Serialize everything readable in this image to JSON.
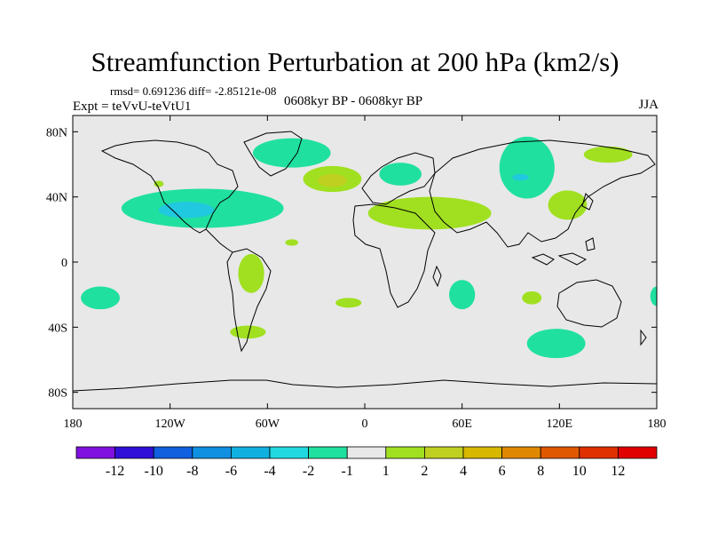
{
  "figure": {
    "title": "Streamfunction Perturbation at 200 hPa (km2/s)",
    "stats": "rmsd= 0.691236 diff= -2.85121e-08",
    "experiment": "Expt = teVvU-teVtU1",
    "period": "0608kyr BP - 0608kyr BP",
    "season": "JJA"
  },
  "map": {
    "projection": "cylindrical equidistant",
    "lon_range": [
      -180,
      180
    ],
    "lat_range": [
      -90,
      90
    ],
    "background": "#e8e8e8",
    "lon_ticks": [
      {
        "lon": -180,
        "label": "180"
      },
      {
        "lon": -120,
        "label": "120W"
      },
      {
        "lon": -60,
        "label": "60W"
      },
      {
        "lon": 0,
        "label": "0"
      },
      {
        "lon": 60,
        "label": "60E"
      },
      {
        "lon": 120,
        "label": "120E"
      },
      {
        "lon": 180,
        "label": "180"
      }
    ],
    "lat_ticks": [
      {
        "lat": 80,
        "label": "80N"
      },
      {
        "lat": 40,
        "label": "40N"
      },
      {
        "lat": 0,
        "label": "0"
      },
      {
        "lat": -40,
        "label": "40S"
      },
      {
        "lat": -80,
        "label": "80S"
      }
    ],
    "anomaly_blobs": [
      {
        "name": "arctic-east-greenland",
        "lon": -45,
        "lat": 67,
        "rlon": 24,
        "rlat": 9,
        "color": "#20e0a0"
      },
      {
        "name": "north-atlantic-ridge",
        "lon": -20,
        "lat": 51,
        "rlon": 18,
        "rlat": 8,
        "color": "#a0e020"
      },
      {
        "name": "north-atlantic-ridge-core",
        "lon": -20,
        "lat": 50,
        "rlon": 9,
        "rlat": 4,
        "color": "#c0d020"
      },
      {
        "name": "scandinavia-low",
        "lon": 22,
        "lat": 54,
        "rlon": 13,
        "rlat": 7,
        "color": "#20e0a0"
      },
      {
        "name": "siberia-low",
        "lon": 100,
        "lat": 58,
        "rlon": 17,
        "rlat": 19,
        "color": "#20e0a0"
      },
      {
        "name": "siberia-low-core",
        "lon": 96,
        "lat": 52,
        "rlon": 5,
        "rlat": 2,
        "color": "#20c8e0"
      },
      {
        "name": "north-pacific-east",
        "lon": 150,
        "lat": 66,
        "rlon": 15,
        "rlat": 5,
        "color": "#a0e020"
      },
      {
        "name": "east-asia-high",
        "lon": 125,
        "lat": 35,
        "rlon": 12,
        "rlat": 9,
        "color": "#a0e020"
      },
      {
        "name": "north-america-low",
        "lon": -100,
        "lat": 33,
        "rlon": 50,
        "rlat": 12,
        "color": "#20e0a0"
      },
      {
        "name": "north-america-low-core",
        "lon": -110,
        "lat": 32,
        "rlon": 17,
        "rlat": 5,
        "color": "#20c8e0"
      },
      {
        "name": "pacific-small-high",
        "lon": -127,
        "lat": 48,
        "rlon": 3,
        "rlat": 2,
        "color": "#a0e020"
      },
      {
        "name": "africa-asia-high",
        "lon": 40,
        "lat": 30,
        "rlon": 38,
        "rlat": 10,
        "color": "#a0e020"
      },
      {
        "name": "atlantic-small-high",
        "lon": -45,
        "lat": 12,
        "rlon": 4,
        "rlat": 2,
        "color": "#a0e020"
      },
      {
        "name": "south-america-high",
        "lon": -70,
        "lat": -7,
        "rlon": 8,
        "rlat": 12,
        "color": "#a0e020"
      },
      {
        "name": "south-atlantic-high",
        "lon": -10,
        "lat": -25,
        "rlon": 8,
        "rlat": 3,
        "color": "#a0e020"
      },
      {
        "name": "indian-ocean-low",
        "lon": 60,
        "lat": -20,
        "rlon": 8,
        "rlat": 9,
        "color": "#20e0a0"
      },
      {
        "name": "south-indian-high",
        "lon": 103,
        "lat": -22,
        "rlon": 6,
        "rlat": 4,
        "color": "#a0e020"
      },
      {
        "name": "south-pacific-low",
        "lon": -163,
        "lat": -22,
        "rlon": 12,
        "rlat": 7,
        "color": "#20e0a0"
      },
      {
        "name": "dateline-edge-low",
        "lon": 180,
        "lat": -21,
        "rlon": 4,
        "rlat": 6,
        "color": "#20e0a0"
      },
      {
        "name": "southern-ocean-low",
        "lon": 118,
        "lat": -50,
        "rlon": 18,
        "rlat": 9,
        "color": "#20e0a0"
      },
      {
        "name": "south-atlantic-ring-high",
        "lon": -72,
        "lat": -43,
        "rlon": 11,
        "rlat": 4,
        "color": "#a0e020"
      }
    ]
  },
  "colorbar": {
    "colors": [
      "#8010e0",
      "#3010d8",
      "#1060e0",
      "#1090e0",
      "#10b0e0",
      "#20d8e0",
      "#20e0a0",
      "#e8e8e8",
      "#a0e020",
      "#c0d020",
      "#d8b800",
      "#e08800",
      "#e05800",
      "#e03000",
      "#e00000"
    ],
    "labels": [
      "-12",
      "-10",
      "-8",
      "-6",
      "-4",
      "-2",
      "-1",
      "1",
      "2",
      "4",
      "6",
      "8",
      "10",
      "12"
    ]
  }
}
